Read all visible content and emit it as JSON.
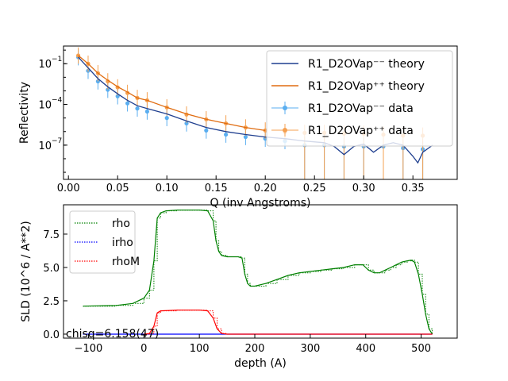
{
  "chart_data": [
    {
      "type": "line",
      "title": "",
      "xlabel": "Q (inv Angstroms)",
      "ylabel": "Reflectivity",
      "xlim": [
        -0.005,
        0.395
      ],
      "ylim": [
        3e-10,
        2
      ],
      "yscale": "log",
      "xticks": [
        0.0,
        0.05,
        0.1,
        0.15,
        0.2,
        0.25,
        0.3,
        0.35
      ],
      "xtick_labels": [
        "0.00",
        "0.05",
        "0.10",
        "0.15",
        "0.20",
        "0.25",
        "0.30",
        "0.35"
      ],
      "yticks": [
        0.1,
        0.0001,
        1e-07
      ],
      "ytick_labels": [
        "10",
        "10",
        "10"
      ],
      "ytick_exponents": [
        "−1",
        "−4",
        "−7"
      ],
      "legend_position": "top-right",
      "series": [
        {
          "name": "R1_D2OVap⁻⁻ theory",
          "kind": "line",
          "color": "#1f3f8f",
          "x": [
            0.01,
            0.02,
            0.03,
            0.04,
            0.05,
            0.06,
            0.07,
            0.08,
            0.1,
            0.12,
            0.14,
            0.16,
            0.18,
            0.2,
            0.22,
            0.24,
            0.26,
            0.27,
            0.28,
            0.29,
            0.3,
            0.31,
            0.32,
            0.33,
            0.34,
            0.35,
            0.355,
            0.36,
            0.37
          ],
          "y": [
            0.3,
            0.05,
            0.008,
            0.002,
            0.0006,
            0.0002,
            8e-05,
            5e-05,
            2e-05,
            6e-06,
            2e-06,
            1e-06,
            6e-07,
            4e-07,
            3e-07,
            2e-07,
            1.5e-07,
            8e-08,
            2e-08,
            8e-08,
            1.2e-07,
            3e-08,
            1e-07,
            1.5e-07,
            1e-07,
            1.5e-08,
            5e-09,
            3e-08,
            1e-07
          ]
        },
        {
          "name": "R1_D2OVap⁺⁺ theory",
          "kind": "line",
          "color": "#e06c10",
          "x": [
            0.01,
            0.02,
            0.03,
            0.04,
            0.05,
            0.06,
            0.07,
            0.08,
            0.1,
            0.12,
            0.14,
            0.16,
            0.18,
            0.2
          ],
          "y": [
            0.4,
            0.1,
            0.02,
            0.006,
            0.002,
            0.0008,
            0.0003,
            0.0002,
            6e-05,
            2e-05,
            8e-06,
            4e-06,
            2e-06,
            1.2e-06
          ]
        },
        {
          "name": "R1_D2OVap⁻⁻ data",
          "kind": "errorbar",
          "color": "#5aaef0",
          "x": [
            0.01,
            0.02,
            0.03,
            0.04,
            0.05,
            0.06,
            0.07,
            0.08,
            0.1,
            0.12,
            0.14,
            0.16,
            0.18,
            0.2,
            0.22,
            0.24,
            0.26,
            0.28,
            0.3,
            0.32,
            0.34,
            0.36
          ],
          "y": [
            0.3,
            0.03,
            0.005,
            0.0012,
            0.0004,
            0.00012,
            5e-05,
            3e-05,
            1e-05,
            4e-06,
            1.2e-06,
            6e-07,
            4e-07,
            3e-07,
            2e-07,
            1e-07,
            1e-07,
            8e-08,
            8e-08,
            8e-08,
            6e-08,
            5e-08
          ]
        },
        {
          "name": "R1_D2OVap⁺⁺ data",
          "kind": "errorbar",
          "color": "#f5a050",
          "x": [
            0.01,
            0.02,
            0.03,
            0.04,
            0.05,
            0.06,
            0.07,
            0.08,
            0.1,
            0.12,
            0.14,
            0.16,
            0.18,
            0.2,
            0.22,
            0.24,
            0.26,
            0.28,
            0.3,
            0.32,
            0.34,
            0.36
          ],
          "y": [
            0.4,
            0.1,
            0.02,
            0.005,
            0.0018,
            0.0007,
            0.0003,
            0.0002,
            6e-05,
            1.8e-05,
            8e-06,
            4e-06,
            2e-06,
            1.2e-06,
            9e-07,
            8e-07,
            8e-07,
            7e-07,
            7e-07,
            6e-07,
            5e-07,
            5e-07
          ]
        }
      ]
    },
    {
      "type": "line",
      "title": "",
      "xlabel": "depth (A)",
      "ylabel": "SLD (10^6 / A**2)",
      "xlim": [
        -145,
        565
      ],
      "ylim": [
        -0.3,
        9.7
      ],
      "xticks": [
        -100,
        0,
        100,
        200,
        300,
        400,
        500
      ],
      "xtick_labels": [
        "−100",
        "0",
        "100",
        "200",
        "300",
        "400",
        "500"
      ],
      "yticks": [
        0.0,
        2.5,
        5.0,
        7.5
      ],
      "ytick_labels": [
        "0.0",
        "2.5",
        "5.0",
        "7.5"
      ],
      "legend_position": "top-left",
      "annotation": "chisq=6.158(47)",
      "series": [
        {
          "name": "rho",
          "kind": "profile",
          "color": "#008000",
          "x": [
            -110,
            -50,
            -20,
            0,
            10,
            18,
            24,
            30,
            40,
            60,
            80,
            100,
            115,
            125,
            130,
            135,
            140,
            150,
            170,
            177,
            182,
            187,
            192,
            200,
            220,
            240,
            260,
            280,
            300,
            320,
            340,
            360,
            380,
            395,
            405,
            415,
            425,
            435,
            445,
            455,
            465,
            475,
            482,
            488,
            495,
            502,
            508,
            514,
            520
          ],
          "y": [
            2.1,
            2.15,
            2.3,
            2.7,
            3.3,
            5.5,
            8.7,
            9.1,
            9.25,
            9.3,
            9.3,
            9.3,
            9.25,
            8.5,
            7.0,
            6.2,
            5.9,
            5.8,
            5.8,
            5.7,
            4.5,
            3.8,
            3.6,
            3.6,
            3.8,
            4.1,
            4.4,
            4.6,
            4.7,
            4.8,
            4.9,
            5.0,
            5.2,
            5.2,
            4.8,
            4.6,
            4.6,
            4.8,
            5.0,
            5.2,
            5.4,
            5.5,
            5.55,
            5.4,
            4.5,
            3.0,
            1.5,
            0.4,
            0.0
          ]
        },
        {
          "name": "irho",
          "kind": "profile",
          "color": "#0000ff",
          "x": [
            -110,
            0,
            100,
            200,
            300,
            400,
            500,
            520
          ],
          "y": [
            0.0,
            0.0,
            0.0,
            0.0,
            0.0,
            0.0,
            0.0,
            0.0
          ]
        },
        {
          "name": "rhoM",
          "kind": "profile",
          "color": "#ff0000",
          "x": [
            0,
            10,
            18,
            24,
            30,
            60,
            100,
            115,
            125,
            132,
            140,
            150,
            200,
            300,
            400,
            500,
            520
          ],
          "y": [
            0.0,
            0.05,
            0.6,
            1.6,
            1.75,
            1.8,
            1.8,
            1.75,
            1.2,
            0.4,
            0.05,
            0.0,
            0.0,
            0.0,
            0.0,
            0.0,
            0.0
          ]
        }
      ]
    }
  ]
}
